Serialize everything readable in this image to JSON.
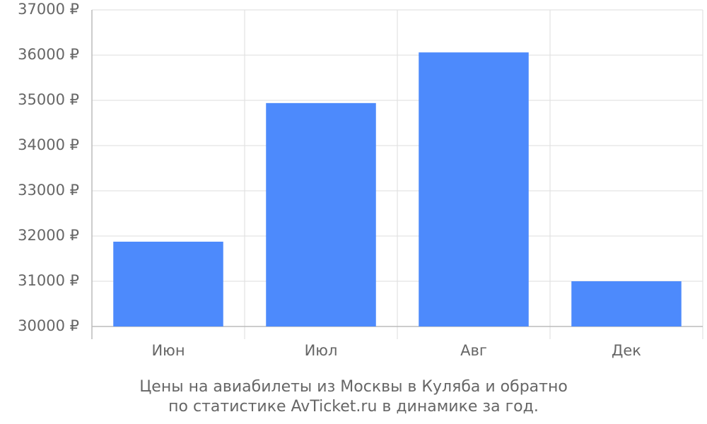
{
  "chart_data": {
    "type": "bar",
    "categories": [
      "Июн",
      "Июл",
      "Авг",
      "Дек"
    ],
    "values": [
      31875,
      34940,
      36060,
      31000
    ],
    "color": "#4d8afc",
    "ylim": [
      30000,
      37000
    ],
    "yticks": [
      {
        "value": 30000,
        "label": "30000 ₽"
      },
      {
        "value": 31000,
        "label": "31000 ₽"
      },
      {
        "value": 32000,
        "label": "32000 ₽"
      },
      {
        "value": 33000,
        "label": "33000 ₽"
      },
      {
        "value": 34000,
        "label": "34000 ₽"
      },
      {
        "value": 35000,
        "label": "35000 ₽"
      },
      {
        "value": 36000,
        "label": "36000 ₽"
      },
      {
        "value": 37000,
        "label": "37000 ₽"
      }
    ],
    "grid": true,
    "caption": [
      "Цены на авиабилеты из Москвы в Куляба и обратно",
      "по статистике AvTicket.ru в динамике за год."
    ]
  }
}
